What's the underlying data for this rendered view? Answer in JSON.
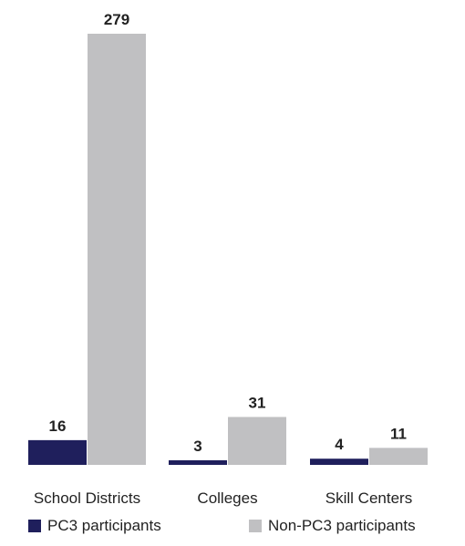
{
  "chart_data": {
    "type": "bar",
    "categories": [
      "School Districts",
      "Colleges",
      "Skill Centers"
    ],
    "series": [
      {
        "name": "PC3 participants",
        "values": [
          16,
          3,
          4
        ],
        "color": "#1f1f5c"
      },
      {
        "name": "Non-PC3 participants",
        "values": [
          279,
          31,
          11
        ],
        "color": "#c0c0c2"
      }
    ],
    "ylim": [
      0,
      279
    ],
    "grid": false,
    "legend": "bottom",
    "title": "",
    "xlabel": "",
    "ylabel": ""
  }
}
